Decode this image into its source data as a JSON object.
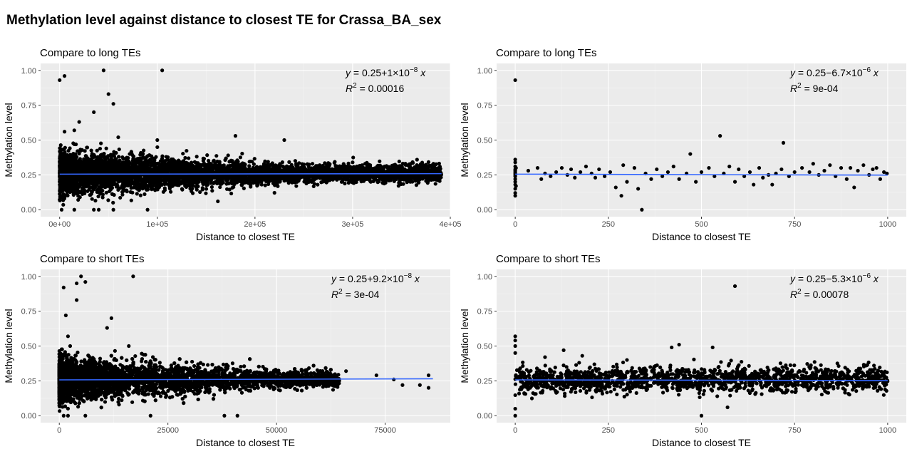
{
  "title": "Methylation level against distance to closest TE for Crassa_BA_sex",
  "colors": {
    "panel_bg": "#ebebeb",
    "grid_major": "#ffffff",
    "grid_minor": "#f4f4f4",
    "point": "#000000",
    "fit_line": "#3366ff",
    "tick_text": "#4d4d4d"
  },
  "chart_data": [
    {
      "type": "scatter",
      "title": "Compare to long TEs",
      "xlabel": "Distance to closest TE",
      "ylabel": "Methylation level",
      "xlim": [
        -19500,
        400000
      ],
      "ylim": [
        -0.05,
        1.05
      ],
      "xticks": [
        0,
        100000,
        200000,
        300000,
        400000
      ],
      "xtick_labels": [
        "0e+00",
        "1e+05",
        "2e+05",
        "3e+05",
        "4e+05"
      ],
      "yticks": [
        0,
        0.25,
        0.5,
        0.75,
        1
      ],
      "ytick_labels": [
        "0.00",
        "0.25",
        "0.50",
        "0.75",
        "1.00"
      ],
      "grid": true,
      "equation": {
        "intercept": "0.25",
        "sign": "+",
        "coef": "1",
        "exp": "−8",
        "r2": "0.00016"
      },
      "fit": {
        "intercept": 0.255,
        "slope": 1e-08,
        "x_range": [
          0,
          391000
        ]
      },
      "cloud": {
        "x_max": 391000,
        "center": 0.26,
        "note": "dense cloud of several thousand points, spread narrows with distance"
      },
      "points": [
        [
          0,
          0.93
        ],
        [
          5000,
          0.96
        ],
        [
          45000,
          1.0
        ],
        [
          105000,
          1.0
        ],
        [
          50000,
          0.83
        ],
        [
          55000,
          0.76
        ],
        [
          35000,
          0.7
        ],
        [
          5000,
          0.56
        ],
        [
          20000,
          0.63
        ],
        [
          15000,
          0.57
        ],
        [
          60000,
          0.52
        ],
        [
          100000,
          0.5
        ],
        [
          180000,
          0.53
        ],
        [
          230000,
          0.5
        ],
        [
          2000,
          0.0
        ],
        [
          15000,
          0.0
        ],
        [
          35000,
          0.0
        ],
        [
          40000,
          0.0
        ],
        [
          55000,
          0.0
        ],
        [
          90000,
          0.0
        ],
        [
          162000,
          0.06
        ],
        [
          300000,
          0.34
        ],
        [
          318000,
          0.32
        ],
        [
          342000,
          0.32
        ],
        [
          388000,
          0.28
        ],
        [
          390000,
          0.25
        ],
        [
          376000,
          0.22
        ]
      ]
    },
    {
      "type": "scatter",
      "title": "Compare to long TEs",
      "xlabel": "Distance to closest TE",
      "ylabel": "Methylation level",
      "xlim": [
        -50,
        1050
      ],
      "ylim": [
        -0.05,
        1.05
      ],
      "xticks": [
        0,
        250,
        500,
        750,
        1000
      ],
      "xtick_labels": [
        "0",
        "250",
        "500",
        "750",
        "1000"
      ],
      "yticks": [
        0,
        0.25,
        0.5,
        0.75,
        1
      ],
      "ytick_labels": [
        "0.00",
        "0.25",
        "0.50",
        "0.75",
        "1.00"
      ],
      "grid": true,
      "equation": {
        "intercept": "0.25",
        "sign": "−",
        "coef": "6.7",
        "exp": "−6",
        "r2": "9e-04"
      },
      "fit": {
        "intercept": 0.255,
        "slope": -6.7e-06,
        "x_range": [
          0,
          1000
        ]
      },
      "points": [
        [
          0,
          0.93
        ],
        [
          0,
          0.36
        ],
        [
          0,
          0.34
        ],
        [
          0,
          0.31
        ],
        [
          0,
          0.29
        ],
        [
          0,
          0.28
        ],
        [
          0,
          0.27
        ],
        [
          0,
          0.26
        ],
        [
          0,
          0.25
        ],
        [
          0,
          0.24
        ],
        [
          0,
          0.22
        ],
        [
          0,
          0.2
        ],
        [
          0,
          0.18
        ],
        [
          0,
          0.15
        ],
        [
          0,
          0.12
        ],
        [
          0,
          0.1
        ],
        [
          2,
          0.3
        ],
        [
          2,
          0.17
        ],
        [
          35,
          0.28
        ],
        [
          60,
          0.3
        ],
        [
          70,
          0.22
        ],
        [
          80,
          0.26
        ],
        [
          95,
          0.24
        ],
        [
          110,
          0.27
        ],
        [
          125,
          0.3
        ],
        [
          140,
          0.25
        ],
        [
          150,
          0.29
        ],
        [
          160,
          0.23
        ],
        [
          175,
          0.27
        ],
        [
          190,
          0.31
        ],
        [
          205,
          0.26
        ],
        [
          215,
          0.23
        ],
        [
          225,
          0.29
        ],
        [
          240,
          0.24
        ],
        [
          255,
          0.27
        ],
        [
          270,
          0.16
        ],
        [
          285,
          0.1
        ],
        [
          290,
          0.32
        ],
        [
          300,
          0.2
        ],
        [
          320,
          0.3
        ],
        [
          330,
          0.15
        ],
        [
          340,
          0.0
        ],
        [
          350,
          0.26
        ],
        [
          365,
          0.22
        ],
        [
          380,
          0.29
        ],
        [
          395,
          0.24
        ],
        [
          410,
          0.27
        ],
        [
          425,
          0.31
        ],
        [
          440,
          0.22
        ],
        [
          460,
          0.26
        ],
        [
          470,
          0.4
        ],
        [
          485,
          0.2
        ],
        [
          500,
          0.27
        ],
        [
          520,
          0.3
        ],
        [
          535,
          0.24
        ],
        [
          550,
          0.53
        ],
        [
          560,
          0.26
        ],
        [
          575,
          0.31
        ],
        [
          590,
          0.2
        ],
        [
          600,
          0.29
        ],
        [
          615,
          0.24
        ],
        [
          630,
          0.27
        ],
        [
          640,
          0.18
        ],
        [
          655,
          0.3
        ],
        [
          665,
          0.23
        ],
        [
          680,
          0.25
        ],
        [
          690,
          0.18
        ],
        [
          700,
          0.26
        ],
        [
          715,
          0.29
        ],
        [
          720,
          0.48
        ],
        [
          735,
          0.24
        ],
        [
          750,
          0.27
        ],
        [
          770,
          0.3
        ],
        [
          790,
          0.27
        ],
        [
          800,
          0.33
        ],
        [
          815,
          0.25
        ],
        [
          830,
          0.28
        ],
        [
          845,
          0.32
        ],
        [
          860,
          0.24
        ],
        [
          875,
          0.3
        ],
        [
          890,
          0.22
        ],
        [
          900,
          0.3
        ],
        [
          910,
          0.16
        ],
        [
          920,
          0.28
        ],
        [
          935,
          0.32
        ],
        [
          950,
          0.25
        ],
        [
          960,
          0.29
        ],
        [
          970,
          0.3
        ],
        [
          980,
          0.22
        ],
        [
          990,
          0.27
        ],
        [
          998,
          0.26
        ]
      ]
    },
    {
      "type": "scatter",
      "title": "Compare to short TEs",
      "xlabel": "Distance to closest TE",
      "ylabel": "Methylation level",
      "xlim": [
        -4300,
        90000
      ],
      "ylim": [
        -0.05,
        1.05
      ],
      "xticks": [
        0,
        25000,
        50000,
        75000
      ],
      "xtick_labels": [
        "0",
        "25000",
        "50000",
        "75000"
      ],
      "yticks": [
        0,
        0.25,
        0.5,
        0.75,
        1
      ],
      "ytick_labels": [
        "0.00",
        "0.25",
        "0.50",
        "0.75",
        "1.00"
      ],
      "grid": true,
      "equation": {
        "intercept": "0.25",
        "sign": "+",
        "coef": "9.2",
        "exp": "−8",
        "r2": "3e-04"
      },
      "fit": {
        "intercept": 0.257,
        "slope": 9.2e-08,
        "x_range": [
          0,
          86000
        ]
      },
      "cloud": {
        "x_max": 86000,
        "center": 0.26,
        "note": "dense cloud, most points below 40000"
      },
      "points": [
        [
          5000,
          1.0
        ],
        [
          17000,
          1.0
        ],
        [
          6000,
          0.96
        ],
        [
          4000,
          0.95
        ],
        [
          1000,
          0.92
        ],
        [
          4000,
          0.83
        ],
        [
          1500,
          0.72
        ],
        [
          12000,
          0.7
        ],
        [
          11000,
          0.63
        ],
        [
          2000,
          0.57
        ],
        [
          2500,
          0.5
        ],
        [
          16000,
          0.5
        ],
        [
          1000,
          0.0
        ],
        [
          2000,
          0.0
        ],
        [
          6000,
          0.0
        ],
        [
          21000,
          0.0
        ],
        [
          38000,
          0.0
        ],
        [
          41000,
          0.0
        ],
        [
          56000,
          0.3
        ],
        [
          62000,
          0.28
        ],
        [
          66000,
          0.32
        ],
        [
          73000,
          0.29
        ],
        [
          77000,
          0.26
        ],
        [
          79000,
          0.22
        ],
        [
          83000,
          0.22
        ],
        [
          85000,
          0.29
        ],
        [
          85000,
          0.2
        ]
      ]
    },
    {
      "type": "scatter",
      "title": "Compare to short TEs",
      "xlabel": "Distance to closest TE",
      "ylabel": "Methylation level",
      "xlim": [
        -50,
        1050
      ],
      "ylim": [
        -0.05,
        1.05
      ],
      "xticks": [
        0,
        250,
        500,
        750,
        1000
      ],
      "xtick_labels": [
        "0",
        "250",
        "500",
        "750",
        "1000"
      ],
      "yticks": [
        0,
        0.25,
        0.5,
        0.75,
        1
      ],
      "ytick_labels": [
        "0.00",
        "0.25",
        "0.50",
        "0.75",
        "1.00"
      ],
      "grid": true,
      "equation": {
        "intercept": "0.25",
        "sign": "−",
        "coef": "5.3",
        "exp": "−6",
        "r2": "0.00078"
      },
      "fit": {
        "intercept": 0.257,
        "slope": -5.3e-06,
        "x_range": [
          0,
          1000
        ]
      },
      "cloud": {
        "x_max": 1000,
        "center": 0.26,
        "note": "uniform band of points across the full range"
      },
      "points": [
        [
          590,
          0.93
        ],
        [
          0,
          0.57
        ],
        [
          0,
          0.54
        ],
        [
          0,
          0.5
        ],
        [
          0,
          0.45
        ],
        [
          0,
          0.0
        ],
        [
          0,
          0.05
        ],
        [
          440,
          0.51
        ],
        [
          420,
          0.49
        ],
        [
          530,
          0.49
        ],
        [
          130,
          0.47
        ],
        [
          180,
          0.43
        ],
        [
          500,
          0.0
        ],
        [
          570,
          0.06
        ],
        [
          80,
          0.42
        ],
        [
          300,
          0.4
        ],
        [
          940,
          0.36
        ],
        [
          700,
          0.34
        ]
      ]
    }
  ]
}
